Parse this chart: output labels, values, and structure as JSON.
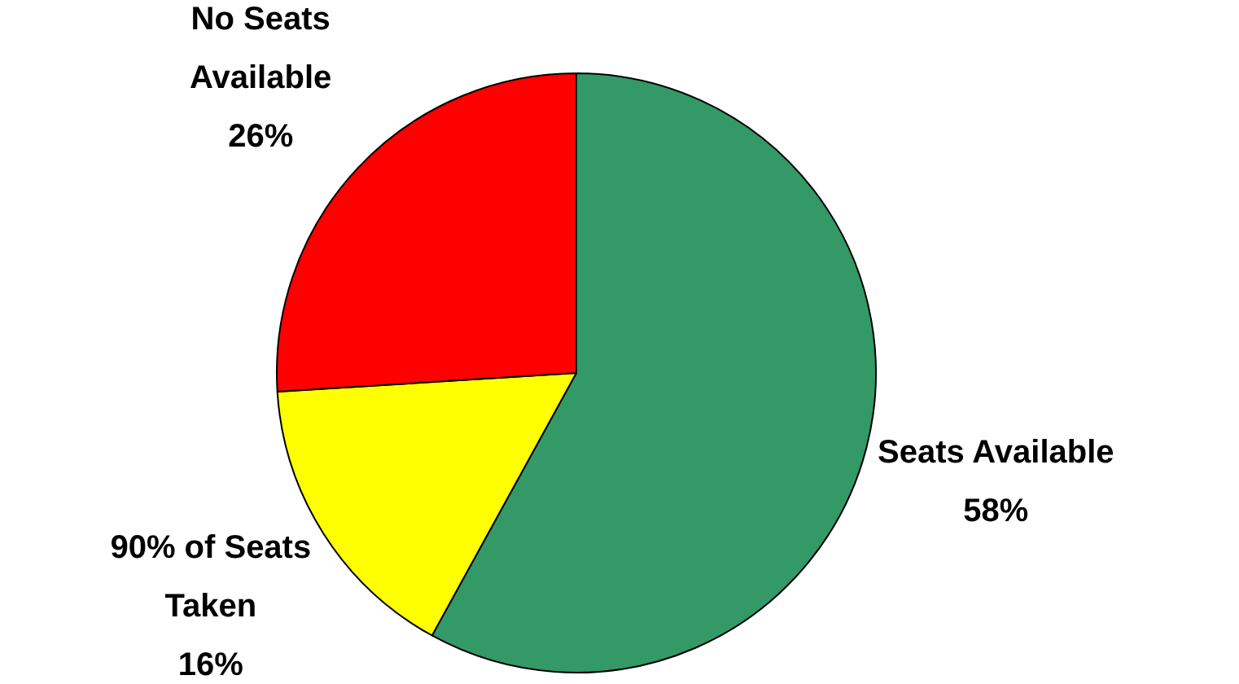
{
  "chart_data": {
    "type": "pie",
    "categories": [
      "Seats Available",
      "90% of Seats Taken",
      "No Seats Available"
    ],
    "values": [
      58,
      16,
      26
    ],
    "colors": [
      "#339966",
      "#ffff00",
      "#ff0000"
    ],
    "value_labels": [
      "58%",
      "16%",
      "26%"
    ]
  }
}
